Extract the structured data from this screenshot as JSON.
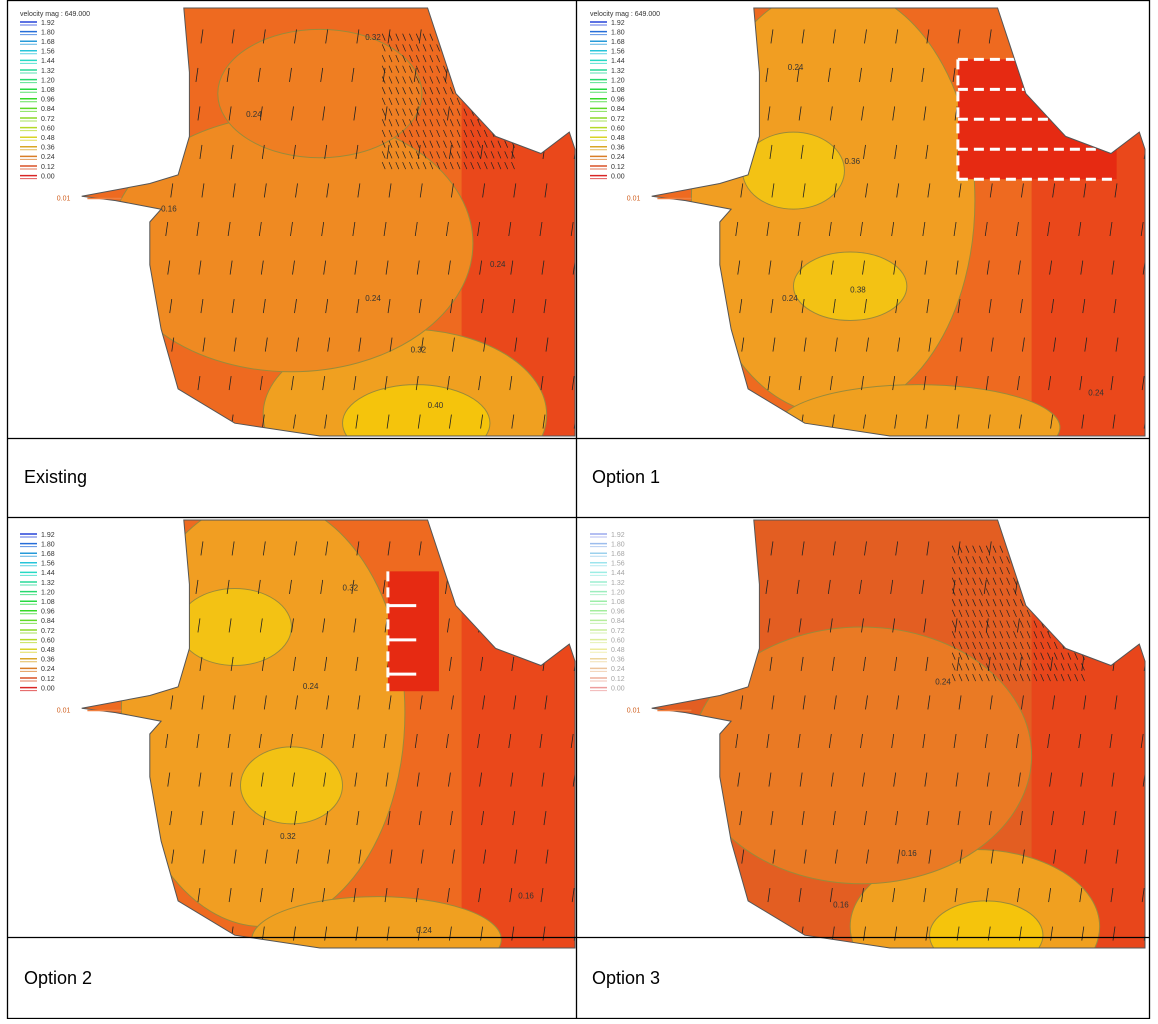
{
  "panels": [
    {
      "caption": "Existing",
      "legend_title": "velocity mag : 649.000",
      "legend": [
        "1.92",
        "1.80",
        "1.68",
        "1.56",
        "1.44",
        "1.32",
        "1.20",
        "1.08",
        "0.96",
        "0.84",
        "0.72",
        "0.60",
        "0.48",
        "0.36",
        "0.24",
        "0.12",
        "0.00"
      ],
      "inlet_label": "0.01",
      "contour_labels": [
        "0.32",
        "0.24",
        "0.16",
        "0.24",
        "0.32",
        "0.40",
        "0.24"
      ]
    },
    {
      "caption": "Option 1",
      "legend_title": "velocity mag : 649.000",
      "legend": [
        "1.92",
        "1.80",
        "1.68",
        "1.56",
        "1.44",
        "1.32",
        "1.20",
        "1.08",
        "0.96",
        "0.84",
        "0.72",
        "0.60",
        "0.48",
        "0.36",
        "0.24",
        "0.12",
        "0.00"
      ],
      "inlet_label": "0.01",
      "contour_labels": [
        "0.24",
        "0.36",
        "0.38",
        "0.24",
        "0.24"
      ]
    },
    {
      "caption": "Option 2",
      "legend": [
        "1.92",
        "1.80",
        "1.68",
        "1.56",
        "1.44",
        "1.32",
        "1.20",
        "1.08",
        "0.96",
        "0.84",
        "0.72",
        "0.60",
        "0.48",
        "0.36",
        "0.24",
        "0.12",
        "0.00"
      ],
      "inlet_label": "0.01",
      "contour_labels": [
        "0.32",
        "0.24",
        "0.32",
        "0.24",
        "0.16"
      ]
    },
    {
      "caption": "Option 3",
      "legend": [
        "1.92",
        "1.80",
        "1.68",
        "1.56",
        "1.44",
        "1.32",
        "1.20",
        "1.08",
        "0.96",
        "0.84",
        "0.72",
        "0.60",
        "0.48",
        "0.36",
        "0.24",
        "0.12",
        "0.00"
      ],
      "inlet_label": "0.01",
      "contour_labels": [
        "0.16",
        "0.24",
        "0.16"
      ]
    }
  ]
}
